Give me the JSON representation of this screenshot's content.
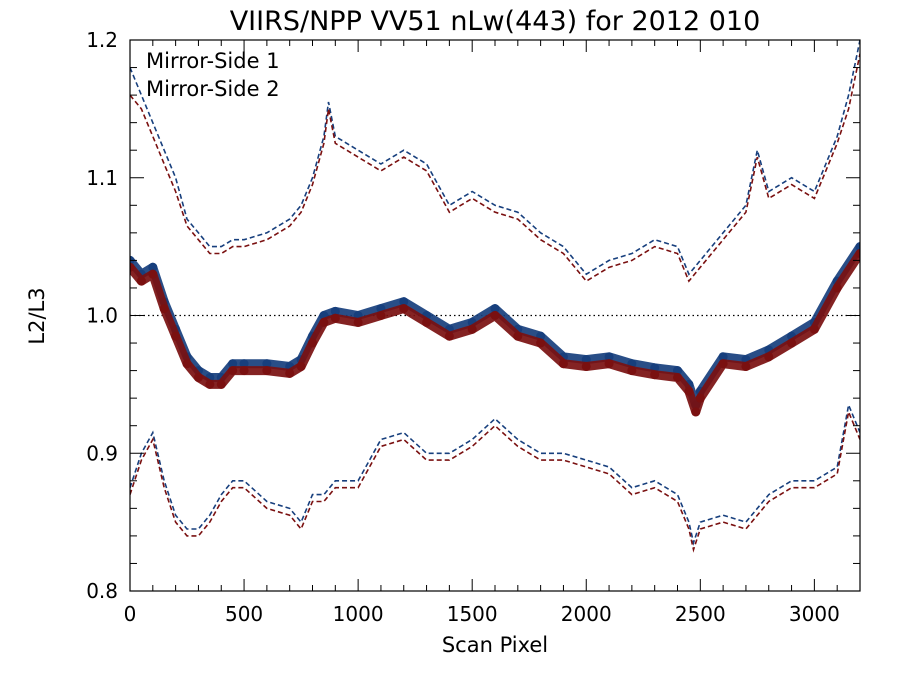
{
  "chart_data": {
    "type": "line",
    "title": "VIIRS/NPP VV51 nLw(443) for 2012 010",
    "xlabel": "Scan Pixel",
    "ylabel": "L2/L3",
    "xlim": [
      0,
      3200
    ],
    "ylim": [
      0.8,
      1.2
    ],
    "x_ticks": [
      0,
      500,
      1000,
      1500,
      2000,
      2500,
      3000
    ],
    "y_ticks": [
      0.8,
      0.9,
      1.0,
      1.1,
      1.2
    ],
    "x_tick_labels": [
      "0",
      "500",
      "1000",
      "1500",
      "2000",
      "2500",
      "3000"
    ],
    "y_tick_labels": [
      "0.8",
      "0.9",
      "1.0",
      "1.1",
      "1.2"
    ],
    "reference_line": {
      "y": 1.0,
      "style": "dotted"
    },
    "legend_position": "top-left",
    "colors": {
      "mirror_side_1": "#173f7d",
      "mirror_side_2": "#7a1010"
    },
    "series": [
      {
        "name": "Mirror-Side 1",
        "color": "#173f7d",
        "median": {
          "x": [
            0,
            50,
            100,
            150,
            200,
            250,
            300,
            350,
            400,
            450,
            500,
            600,
            700,
            750,
            800,
            850,
            900,
            1000,
            1100,
            1200,
            1300,
            1400,
            1500,
            1600,
            1700,
            1800,
            1900,
            2000,
            2100,
            2200,
            2300,
            2400,
            2450,
            2480,
            2500,
            2600,
            2700,
            2800,
            2900,
            3000,
            3100,
            3200
          ],
          "y": [
            1.04,
            1.03,
            1.035,
            1.01,
            0.99,
            0.97,
            0.96,
            0.955,
            0.955,
            0.965,
            0.965,
            0.965,
            0.963,
            0.968,
            0.985,
            1.0,
            1.003,
            1.0,
            1.005,
            1.01,
            1.0,
            0.99,
            0.995,
            1.005,
            0.99,
            0.985,
            0.97,
            0.968,
            0.97,
            0.965,
            0.962,
            0.96,
            0.95,
            0.935,
            0.945,
            0.97,
            0.968,
            0.975,
            0.985,
            0.995,
            1.025,
            1.05
          ]
        },
        "upper": {
          "x": [
            0,
            50,
            100,
            150,
            200,
            250,
            300,
            350,
            400,
            450,
            500,
            600,
            700,
            750,
            800,
            850,
            870,
            900,
            1000,
            1100,
            1200,
            1300,
            1400,
            1500,
            1600,
            1700,
            1800,
            1900,
            2000,
            2100,
            2200,
            2300,
            2400,
            2450,
            2500,
            2600,
            2700,
            2750,
            2800,
            2900,
            3000,
            3050,
            3100,
            3150,
            3200
          ],
          "y": [
            1.18,
            1.16,
            1.14,
            1.12,
            1.1,
            1.07,
            1.06,
            1.05,
            1.05,
            1.055,
            1.055,
            1.06,
            1.07,
            1.08,
            1.1,
            1.13,
            1.155,
            1.13,
            1.12,
            1.11,
            1.12,
            1.11,
            1.08,
            1.09,
            1.08,
            1.075,
            1.06,
            1.05,
            1.03,
            1.04,
            1.045,
            1.055,
            1.05,
            1.03,
            1.04,
            1.06,
            1.08,
            1.12,
            1.09,
            1.1,
            1.09,
            1.11,
            1.13,
            1.16,
            1.2
          ]
        },
        "lower": {
          "x": [
            0,
            50,
            100,
            150,
            200,
            250,
            300,
            350,
            400,
            450,
            500,
            600,
            700,
            750,
            800,
            850,
            900,
            1000,
            1100,
            1200,
            1300,
            1400,
            1500,
            1600,
            1700,
            1800,
            1900,
            2000,
            2100,
            2200,
            2300,
            2400,
            2450,
            2470,
            2500,
            2600,
            2700,
            2800,
            2900,
            3000,
            3050,
            3100,
            3150,
            3200
          ],
          "y": [
            0.875,
            0.9,
            0.915,
            0.88,
            0.855,
            0.845,
            0.845,
            0.855,
            0.87,
            0.88,
            0.88,
            0.865,
            0.86,
            0.85,
            0.87,
            0.87,
            0.88,
            0.88,
            0.91,
            0.915,
            0.9,
            0.9,
            0.91,
            0.925,
            0.91,
            0.9,
            0.9,
            0.895,
            0.89,
            0.875,
            0.88,
            0.87,
            0.85,
            0.835,
            0.85,
            0.855,
            0.85,
            0.87,
            0.88,
            0.88,
            0.885,
            0.89,
            0.935,
            0.915
          ]
        }
      },
      {
        "name": "Mirror-Side 2",
        "color": "#7a1010",
        "median": {
          "x": [
            0,
            50,
            100,
            150,
            200,
            250,
            300,
            350,
            400,
            450,
            500,
            600,
            700,
            750,
            800,
            850,
            900,
            1000,
            1100,
            1200,
            1300,
            1400,
            1500,
            1600,
            1700,
            1800,
            1900,
            2000,
            2100,
            2200,
            2300,
            2400,
            2450,
            2480,
            2500,
            2600,
            2700,
            2800,
            2900,
            3000,
            3100,
            3200
          ],
          "y": [
            1.035,
            1.025,
            1.03,
            1.005,
            0.985,
            0.965,
            0.955,
            0.95,
            0.95,
            0.96,
            0.96,
            0.96,
            0.958,
            0.963,
            0.98,
            0.995,
            0.998,
            0.995,
            1.0,
            1.005,
            0.995,
            0.985,
            0.99,
            1.0,
            0.985,
            0.98,
            0.965,
            0.963,
            0.965,
            0.96,
            0.957,
            0.955,
            0.945,
            0.93,
            0.94,
            0.965,
            0.963,
            0.97,
            0.98,
            0.99,
            1.02,
            1.045
          ]
        },
        "upper": {
          "x": [
            0,
            50,
            100,
            150,
            200,
            250,
            300,
            350,
            400,
            450,
            500,
            600,
            700,
            750,
            800,
            850,
            870,
            900,
            1000,
            1100,
            1200,
            1300,
            1400,
            1500,
            1600,
            1700,
            1800,
            1900,
            2000,
            2100,
            2200,
            2300,
            2400,
            2450,
            2500,
            2600,
            2700,
            2750,
            2800,
            2900,
            3000,
            3050,
            3100,
            3150,
            3200
          ],
          "y": [
            1.16,
            1.15,
            1.13,
            1.11,
            1.09,
            1.065,
            1.055,
            1.045,
            1.045,
            1.05,
            1.05,
            1.055,
            1.065,
            1.075,
            1.095,
            1.125,
            1.15,
            1.125,
            1.115,
            1.105,
            1.115,
            1.105,
            1.075,
            1.085,
            1.075,
            1.07,
            1.055,
            1.045,
            1.025,
            1.035,
            1.04,
            1.05,
            1.045,
            1.025,
            1.035,
            1.055,
            1.075,
            1.115,
            1.085,
            1.095,
            1.085,
            1.105,
            1.125,
            1.15,
            1.19
          ]
        },
        "lower": {
          "x": [
            0,
            50,
            100,
            150,
            200,
            250,
            300,
            350,
            400,
            450,
            500,
            600,
            700,
            750,
            800,
            850,
            900,
            1000,
            1100,
            1200,
            1300,
            1400,
            1500,
            1600,
            1700,
            1800,
            1900,
            2000,
            2100,
            2200,
            2300,
            2400,
            2450,
            2470,
            2500,
            2600,
            2700,
            2800,
            2900,
            3000,
            3050,
            3100,
            3150,
            3200
          ],
          "y": [
            0.87,
            0.895,
            0.91,
            0.875,
            0.85,
            0.84,
            0.84,
            0.85,
            0.865,
            0.875,
            0.875,
            0.86,
            0.855,
            0.845,
            0.865,
            0.865,
            0.875,
            0.875,
            0.905,
            0.91,
            0.895,
            0.895,
            0.905,
            0.92,
            0.905,
            0.895,
            0.895,
            0.89,
            0.885,
            0.87,
            0.875,
            0.865,
            0.845,
            0.83,
            0.845,
            0.85,
            0.845,
            0.865,
            0.875,
            0.875,
            0.88,
            0.885,
            0.93,
            0.91
          ]
        }
      }
    ]
  }
}
